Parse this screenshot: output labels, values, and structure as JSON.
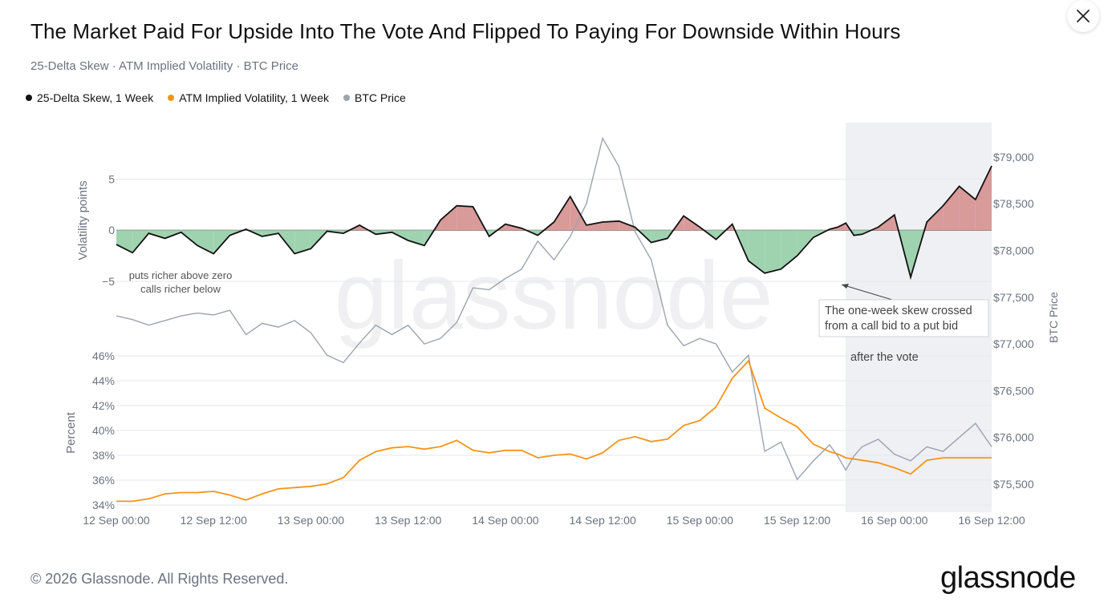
{
  "title": "The Market Paid For Upside Into The Vote And Flipped To Paying For Downside Within Hours",
  "subtitle": "25-Delta Skew · ATM Implied Volatility · BTC Price",
  "legend": [
    {
      "label": "25-Delta Skew, 1 Week",
      "color": "#111111"
    },
    {
      "label": "ATM Implied Volatility, 1 Week",
      "color": "#f7931a"
    },
    {
      "label": "BTC Price",
      "color": "#9ca3af"
    }
  ],
  "footer": {
    "copyright": "© 2026 Glassnode. All Rights Reserved.",
    "brand": "glassnode"
  },
  "watermark": "glassnode",
  "chart_data": {
    "type": "line",
    "x_ticks": [
      "12 Sep 00:00",
      "12 Sep 12:00",
      "13 Sep 00:00",
      "13 Sep 12:00",
      "14 Sep 00:00",
      "14 Sep 12:00",
      "15 Sep 00:00",
      "15 Sep 12:00",
      "16 Sep 00:00",
      "16 Sep 12:00"
    ],
    "x_range_hours": [
      0,
      108
    ],
    "highlight_window_hours": [
      90,
      108
    ],
    "skew": {
      "name": "25-Delta Skew, 1 Week",
      "ylabel": "Volatility points",
      "ticks": [
        5,
        0,
        -5
      ],
      "tick_labels": [
        "5",
        "0",
        "−5"
      ],
      "ylim": [
        -8.3,
        9.2
      ],
      "positive_color": "#d99a9a",
      "negative_color": "#9fd3b0",
      "annotation_lines": [
        "puts richer above zero",
        "calls richer below"
      ],
      "x": [
        0,
        2,
        4,
        6,
        8,
        10,
        12,
        14,
        16,
        18,
        20,
        22,
        24,
        26,
        28,
        30,
        32,
        34,
        36,
        38,
        40,
        42,
        44,
        46,
        48,
        50,
        52,
        54,
        56,
        58,
        60,
        62,
        64,
        66,
        68,
        70,
        72,
        74,
        76,
        78,
        80,
        82,
        84,
        86,
        88,
        89,
        90,
        91,
        92,
        94,
        96,
        98,
        100,
        102,
        104,
        106,
        108
      ],
      "values": [
        -1.4,
        -2.2,
        -0.3,
        -0.8,
        -0.2,
        -1.5,
        -2.3,
        -0.5,
        0.1,
        -0.6,
        -0.3,
        -2.3,
        -1.8,
        -0.1,
        -0.3,
        0.5,
        -0.4,
        -0.2,
        -1.0,
        -1.5,
        1.0,
        2.4,
        2.3,
        -0.6,
        0.6,
        0.2,
        -0.5,
        0.8,
        3.3,
        0.5,
        0.8,
        0.9,
        0.3,
        -1.2,
        -0.8,
        1.4,
        0.3,
        -0.9,
        0.6,
        -3.0,
        -4.2,
        -3.8,
        -2.5,
        -0.7,
        0.1,
        0.3,
        0.7,
        -0.5,
        -0.4,
        0.3,
        1.5,
        -4.6,
        0.8,
        2.4,
        4.3,
        3.0,
        6.3
      ]
    },
    "iv": {
      "name": "ATM Implied Volatility, 1 Week",
      "ylabel": "Percent",
      "ticks": [
        34,
        36,
        38,
        40,
        42,
        44,
        46
      ],
      "tick_labels": [
        "34%",
        "36%",
        "38%",
        "40%",
        "42%",
        "44%",
        "46%"
      ],
      "ylim": [
        34,
        46
      ],
      "color": "#f7931a",
      "x": [
        0,
        2,
        4,
        6,
        8,
        10,
        12,
        14,
        16,
        18,
        20,
        22,
        24,
        26,
        28,
        30,
        32,
        34,
        36,
        38,
        40,
        42,
        44,
        46,
        48,
        50,
        52,
        54,
        56,
        58,
        60,
        62,
        64,
        66,
        68,
        70,
        72,
        74,
        76,
        78,
        80,
        82,
        84,
        86,
        88,
        89,
        90,
        91,
        92,
        94,
        96,
        98,
        100,
        102,
        104,
        106,
        108
      ],
      "values": [
        34.3,
        34.3,
        34.5,
        34.9,
        35.0,
        35.0,
        35.1,
        34.8,
        34.4,
        34.9,
        35.3,
        35.4,
        35.5,
        35.7,
        36.2,
        37.6,
        38.3,
        38.6,
        38.7,
        38.5,
        38.7,
        39.2,
        38.4,
        38.2,
        38.4,
        38.4,
        37.8,
        38.0,
        38.1,
        37.7,
        38.2,
        39.2,
        39.5,
        39.1,
        39.3,
        40.4,
        40.8,
        41.9,
        44.2,
        45.6,
        41.8,
        41.0,
        40.3,
        38.9,
        38.3,
        38.1,
        37.8,
        37.7,
        37.6,
        37.4,
        37.0,
        36.5,
        37.6,
        37.8,
        37.8,
        37.8,
        37.8
      ]
    },
    "btc": {
      "name": "BTC Price",
      "ylabel": "BTC Price",
      "ticks": [
        75500,
        76000,
        76500,
        77000,
        77500,
        78000,
        78500,
        79000
      ],
      "tick_labels": [
        "$75,500",
        "$76,000",
        "$76,500",
        "$77,000",
        "$77,500",
        "$78,000",
        "$78,500",
        "$79,000"
      ],
      "ylim": [
        75200,
        79350
      ],
      "color": "#9ca3af",
      "x": [
        0,
        2,
        4,
        6,
        8,
        10,
        12,
        14,
        16,
        18,
        20,
        22,
        24,
        26,
        28,
        30,
        32,
        34,
        36,
        38,
        40,
        42,
        44,
        46,
        48,
        50,
        52,
        54,
        56,
        58,
        60,
        62,
        64,
        66,
        68,
        70,
        72,
        74,
        76,
        78,
        80,
        82,
        84,
        86,
        88,
        89,
        90,
        91,
        92,
        94,
        96,
        98,
        100,
        102,
        104,
        106,
        108
      ],
      "values": [
        77300,
        77260,
        77200,
        77250,
        77300,
        77330,
        77310,
        77360,
        77100,
        77220,
        77180,
        77250,
        77120,
        76880,
        76800,
        77010,
        77200,
        77100,
        77200,
        77000,
        77060,
        77230,
        77600,
        77580,
        77700,
        77800,
        78100,
        77900,
        78150,
        78500,
        79200,
        78900,
        78200,
        77900,
        77200,
        76980,
        77060,
        77000,
        76700,
        76880,
        75850,
        75950,
        75550,
        75750,
        75920,
        75800,
        75650,
        75800,
        75900,
        75980,
        75820,
        75750,
        75900,
        75850,
        76000,
        76150,
        75900
      ]
    },
    "annotations": [
      {
        "lines": [
          "The one-week skew crossed",
          "from a call bid to a put bid"
        ]
      },
      {
        "lines": [
          "after the vote"
        ]
      }
    ]
  }
}
